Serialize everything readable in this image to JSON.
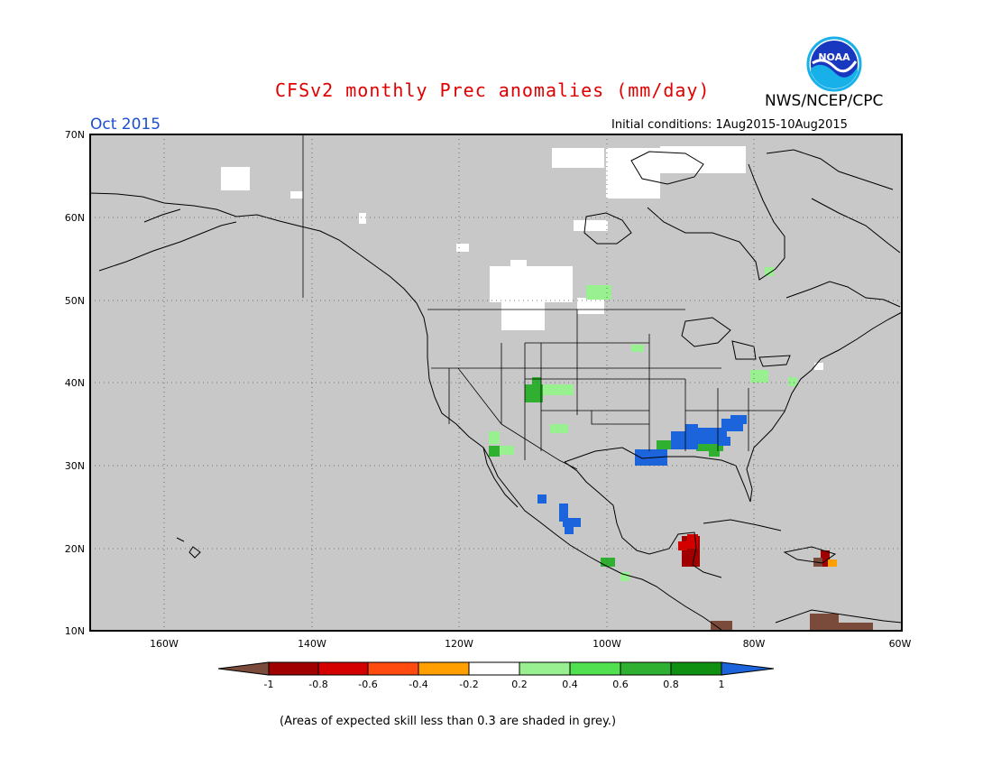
{
  "title": "CFSv2 monthly Prec anomalies (mm/day)",
  "agency": "NWS/NCEP/CPC",
  "logo_text": "NOAA",
  "month": "Oct 2015",
  "initial_conditions": "Initial conditions: 1Aug2015-10Aug2015",
  "lat_labels": [
    "70N",
    "60N",
    "50N",
    "40N",
    "30N",
    "20N",
    "10N"
  ],
  "lon_labels": [
    "160W",
    "140W",
    "120W",
    "100W",
    "80W",
    "60W"
  ],
  "colorbar": {
    "tick_labels": [
      "-1",
      "-0.8",
      "-0.6",
      "-0.4",
      "-0.2",
      "0.2",
      "0.4",
      "0.6",
      "0.8",
      "1"
    ],
    "colors": [
      "#7a4a3a",
      "#a00000",
      "#d40000",
      "#ff4a10",
      "#ffa000",
      "#ffffff",
      "#98f090",
      "#50e050",
      "#30b030",
      "#109010",
      "#1c64dc"
    ]
  },
  "note": "(Areas of expected skill less than 0.3 are shaded in grey.)",
  "map_colors": {
    "land_sea_grey": "#c8c8c8",
    "white_near_zero": "#ffffff",
    "light_green": "#98f090",
    "green": "#30b030",
    "blue": "#1c64dc",
    "dark_red": "#a00000",
    "red": "#d40000",
    "brown": "#7a4a3a",
    "orange": "#ffa000"
  }
}
